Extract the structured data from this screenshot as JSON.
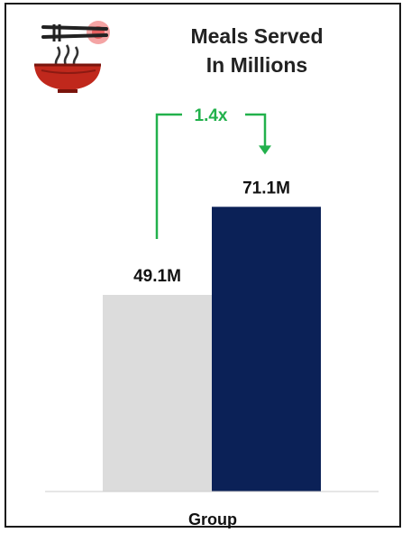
{
  "icon": "noodle-bowl-icon",
  "chart_data": {
    "type": "bar",
    "title_lines": [
      "Meals Served",
      "In Millions"
    ],
    "categories": [
      "",
      ""
    ],
    "values": [
      49.1,
      71.1
    ],
    "data_labels": [
      "49.1M",
      "71.1M"
    ],
    "xlabel": "Group",
    "ylim": [
      0,
      100
    ],
    "colors": [
      "#dcdcdc",
      "#0b2157"
    ],
    "annotation": {
      "text": "1.4x",
      "color": "#22b14c",
      "from": 0,
      "to": 1
    }
  }
}
